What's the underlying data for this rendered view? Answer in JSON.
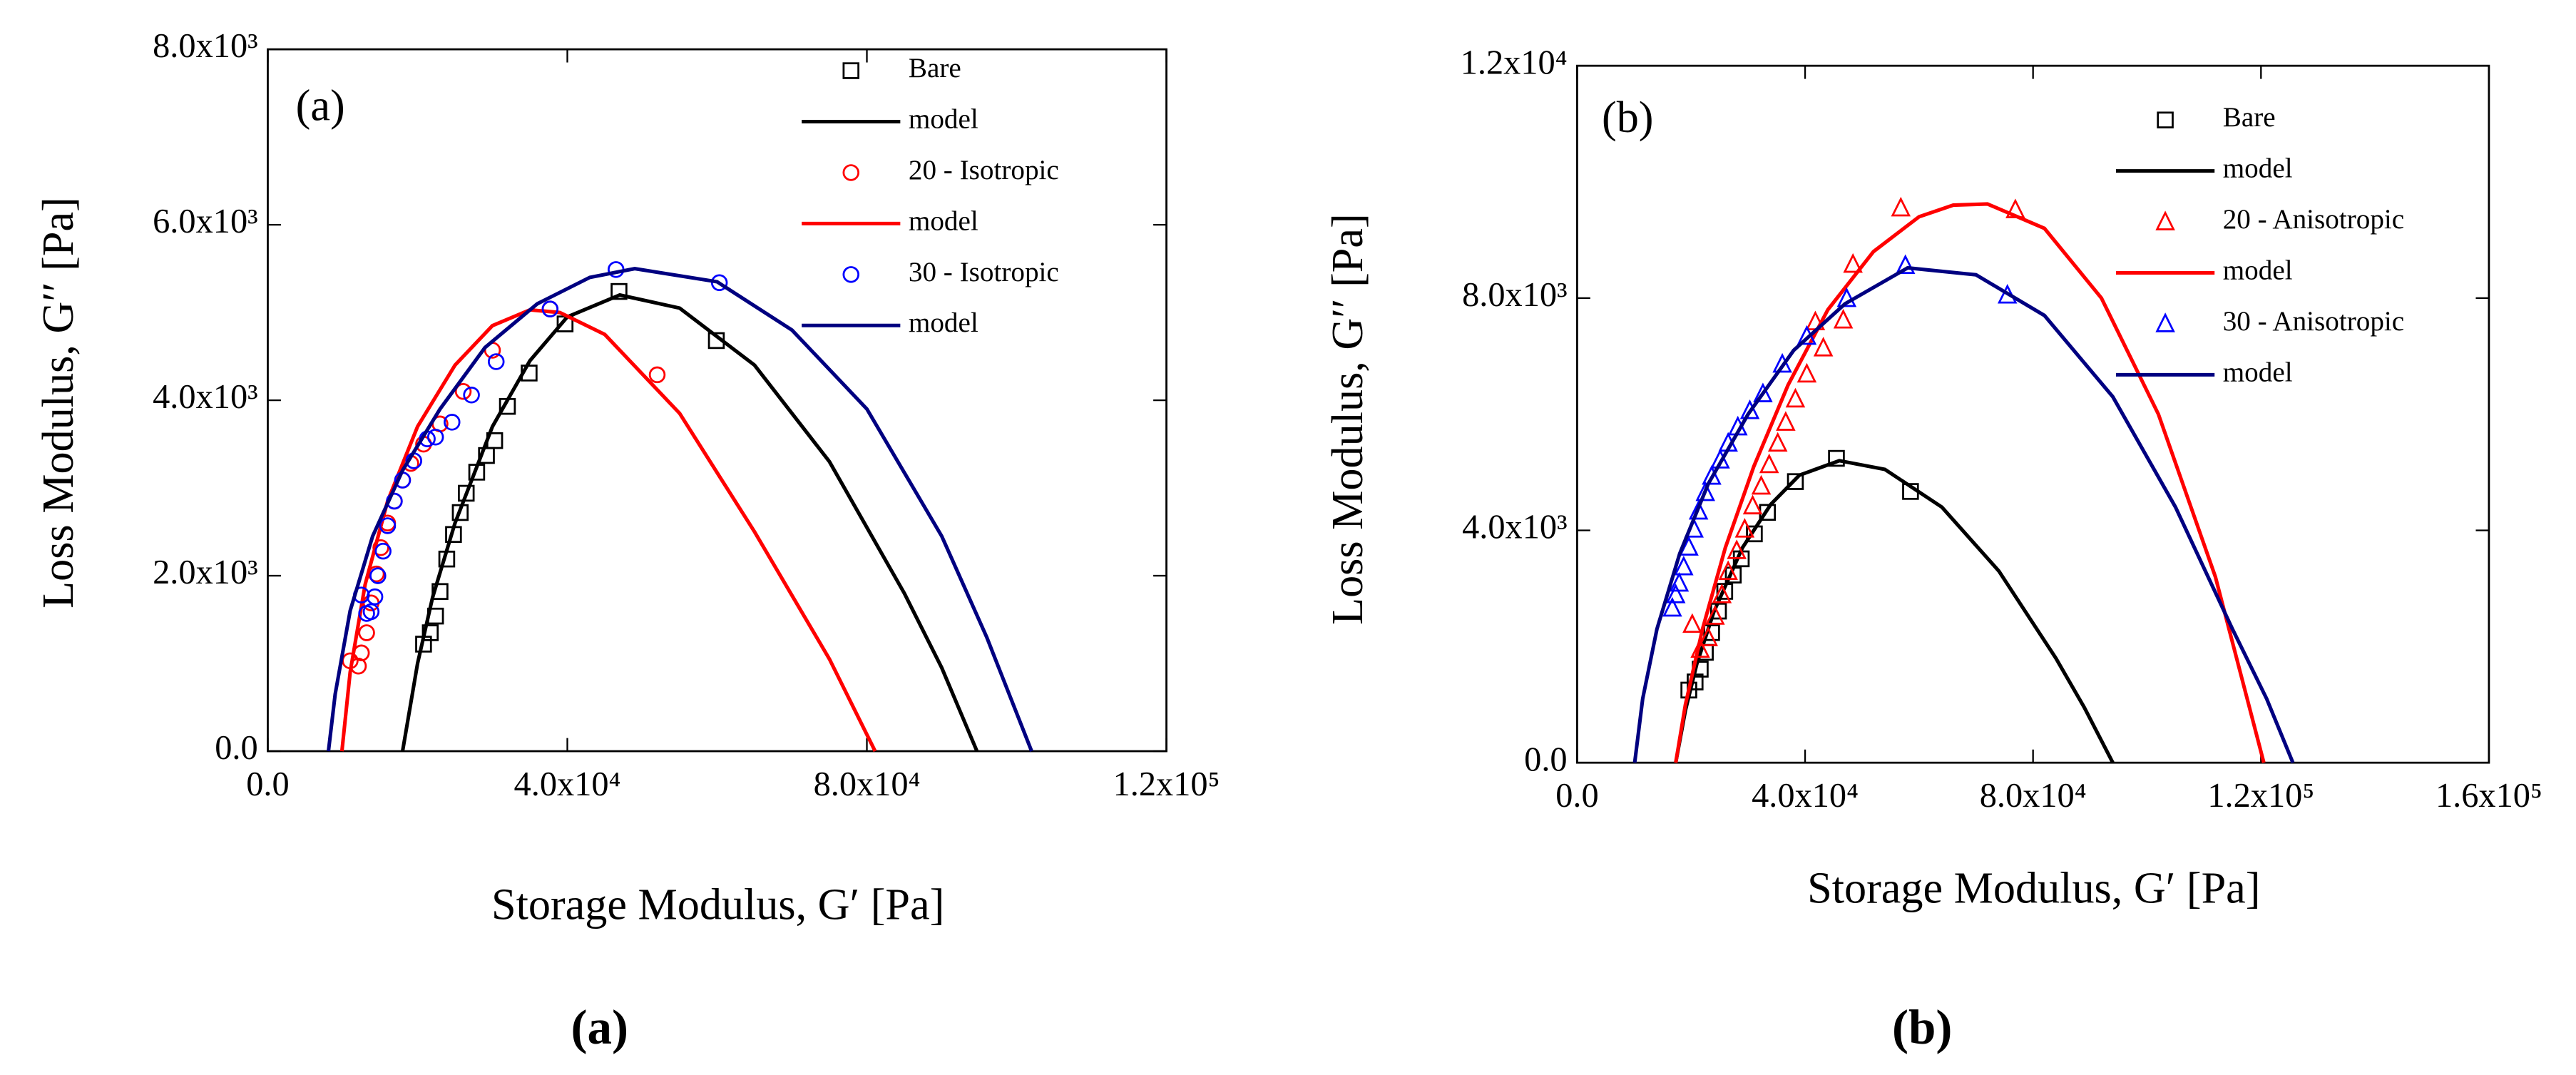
{
  "chart_data": [
    {
      "type": "scatter",
      "panel_label": "(a)",
      "caption": "(a)",
      "xlabel": "Storage Modulus, G′ [Pa]",
      "ylabel": "Loss Modulus, G′′ [Pa]",
      "xlim": [
        0,
        120000
      ],
      "ylim": [
        0,
        8000
      ],
      "xticks": [
        {
          "value": 0,
          "label": "0.0"
        },
        {
          "value": 40000,
          "label": "4.0x10⁴"
        },
        {
          "value": 80000,
          "label": "8.0x10⁴"
        },
        {
          "value": 120000,
          "label": "1.2x10⁵"
        }
      ],
      "yticks": [
        {
          "value": 0,
          "label": "0.0"
        },
        {
          "value": 2000,
          "label": "2.0x10³"
        },
        {
          "value": 4000,
          "label": "4.0x10³"
        },
        {
          "value": 6000,
          "label": "6.0x10³"
        },
        {
          "value": 8000,
          "label": "8.0x10³"
        }
      ],
      "series": [
        {
          "name": "Bare",
          "kind": "marker",
          "marker": "square",
          "color": "#000000",
          "x": [
            20800,
            21700,
            22400,
            23000,
            23900,
            24800,
            25700,
            26500,
            27900,
            29200,
            30300,
            32000,
            34900,
            39700,
            46900,
            59900
          ],
          "values": [
            1220,
            1350,
            1540,
            1820,
            2190,
            2470,
            2720,
            2940,
            3180,
            3370,
            3540,
            3930,
            4310,
            4870,
            5240,
            4680
          ]
        },
        {
          "name": "model",
          "kind": "line",
          "color": "#000000",
          "x": [
            18000,
            20000,
            22000,
            25000,
            30000,
            35000,
            40000,
            47000,
            55000,
            65000,
            75000,
            85000,
            90000,
            94700
          ],
          "values": [
            0,
            1000,
            1750,
            2600,
            3700,
            4450,
            4950,
            5200,
            5050,
            4400,
            3300,
            1800,
            950,
            0
          ]
        },
        {
          "name": "20 - Isotropic",
          "kind": "marker",
          "marker": "circle",
          "color": "#ff0000",
          "x": [
            11000,
            12100,
            12500,
            13200,
            13800,
            14500,
            15100,
            16000,
            16900,
            18000,
            19100,
            20800,
            23000,
            26100,
            30000,
            37700,
            52000
          ],
          "values": [
            1030,
            970,
            1120,
            1350,
            1690,
            2020,
            2320,
            2600,
            2850,
            3090,
            3280,
            3500,
            3730,
            4100,
            4570,
            5040,
            4290
          ]
        },
        {
          "name": "model",
          "kind": "line",
          "color": "#ff0000",
          "x": [
            9900,
            11000,
            13000,
            16000,
            20000,
            25000,
            30000,
            35000,
            39000,
            45000,
            55000,
            65000,
            75000,
            81100
          ],
          "values": [
            0,
            900,
            1900,
            2850,
            3700,
            4400,
            4850,
            5030,
            5000,
            4750,
            3850,
            2500,
            1050,
            0
          ]
        },
        {
          "name": "30 - Isotropic",
          "kind": "marker",
          "marker": "circle",
          "color": "#0000ff",
          "x": [
            12500,
            13200,
            13800,
            14300,
            14700,
            15400,
            16000,
            16900,
            18000,
            19500,
            21300,
            22400,
            24600,
            27200,
            30500,
            37700,
            46500,
            60300
          ],
          "values": [
            1780,
            1570,
            1590,
            1760,
            2000,
            2280,
            2570,
            2850,
            3090,
            3310,
            3560,
            3580,
            3750,
            4060,
            4440,
            5040,
            5490,
            5340
          ]
        },
        {
          "name": "model",
          "kind": "line",
          "color": "#000080",
          "x": [
            8100,
            9000,
            11000,
            14000,
            18000,
            23000,
            29000,
            36000,
            43000,
            49000,
            60000,
            70000,
            80000,
            90000,
            96000,
            102000
          ],
          "values": [
            0,
            650,
            1600,
            2450,
            3200,
            3900,
            4600,
            5100,
            5400,
            5500,
            5350,
            4800,
            3900,
            2450,
            1300,
            0
          ]
        }
      ]
    },
    {
      "type": "scatter",
      "panel_label": "(b)",
      "caption": "(b)",
      "xlabel": "Storage Modulus, G′ [Pa]",
      "ylabel": "Loss Modulus, G′′ [Pa]",
      "xlim": [
        0,
        160000
      ],
      "ylim": [
        0,
        12000
      ],
      "xticks": [
        {
          "value": 0,
          "label": "0.0"
        },
        {
          "value": 40000,
          "label": "4.0x10⁴"
        },
        {
          "value": 80000,
          "label": "8.0x10⁴"
        },
        {
          "value": 120000,
          "label": "1.2x10⁵"
        },
        {
          "value": 160000,
          "label": "1.6x10⁵"
        }
      ],
      "yticks": [
        {
          "value": 0,
          "label": "0.0"
        },
        {
          "value": 4000,
          "label": "4.0x10³"
        },
        {
          "value": 8000,
          "label": "8.0x10³"
        },
        {
          "value": 12000,
          "label": "1.2x10⁴"
        }
      ],
      "series": [
        {
          "name": "Bare",
          "kind": "marker",
          "marker": "square",
          "color": "#000000",
          "x": [
            19600,
            20700,
            21600,
            22500,
            23600,
            24800,
            25900,
            27400,
            28800,
            31100,
            33400,
            38300,
            45500,
            58500
          ],
          "values": [
            1250,
            1390,
            1610,
            1900,
            2240,
            2610,
            2950,
            3230,
            3510,
            3940,
            4310,
            4840,
            5240,
            4670
          ]
        },
        {
          "name": "model",
          "kind": "line",
          "color": "#000000",
          "x": [
            17300,
            19000,
            21000,
            24000,
            29000,
            34000,
            39000,
            46000,
            54000,
            64000,
            74000,
            84000,
            89000,
            94000
          ],
          "values": [
            0,
            900,
            1700,
            2600,
            3700,
            4450,
            4950,
            5200,
            5050,
            4400,
            3300,
            1800,
            950,
            0
          ]
        },
        {
          "name": "20 - Anisotropic",
          "kind": "marker",
          "marker": "triangle",
          "color": "#ff0000",
          "x": [
            20200,
            21600,
            23000,
            24200,
            25400,
            26500,
            28000,
            29400,
            30800,
            32300,
            33700,
            35200,
            36600,
            38300,
            40300,
            41800,
            43200,
            46700,
            48400,
            56800,
            76900
          ],
          "values": [
            2380,
            1950,
            2150,
            2520,
            2890,
            3290,
            3650,
            4020,
            4420,
            4760,
            5130,
            5500,
            5860,
            6260,
            6690,
            7590,
            7140,
            7620,
            8580,
            9550,
            9520
          ]
        },
        {
          "name": "model",
          "kind": "line",
          "color": "#ff0000",
          "x": [
            17300,
            19000,
            22000,
            26000,
            31000,
            37000,
            44000,
            52000,
            60000,
            66000,
            72000,
            82000,
            92000,
            102000,
            112000,
            120500
          ],
          "values": [
            0,
            1000,
            2300,
            3700,
            5100,
            6500,
            7800,
            8800,
            9400,
            9600,
            9620,
            9200,
            8000,
            6000,
            3200,
            0
          ]
        },
        {
          "name": "30 - Anisotropic",
          "kind": "marker",
          "marker": "triangle",
          "color": "#0000ff",
          "x": [
            16700,
            17300,
            17900,
            18700,
            19600,
            20500,
            21300,
            22500,
            23600,
            25100,
            26500,
            28200,
            30300,
            32600,
            36000,
            40300,
            47300,
            57600,
            75500
          ],
          "values": [
            2660,
            2890,
            3090,
            3370,
            3710,
            4020,
            4330,
            4650,
            4930,
            5210,
            5500,
            5780,
            6060,
            6350,
            6860,
            7340,
            7990,
            8560,
            8050
          ]
        },
        {
          "name": "model",
          "kind": "line",
          "color": "#000080",
          "x": [
            10100,
            11500,
            14000,
            18000,
            23000,
            30000,
            38000,
            47000,
            58000,
            70000,
            82000,
            94000,
            105000,
            115000,
            121000,
            125600
          ],
          "values": [
            0,
            1100,
            2300,
            3600,
            4800,
            6000,
            7100,
            7900,
            8520,
            8400,
            7700,
            6300,
            4400,
            2300,
            1100,
            0
          ]
        }
      ]
    }
  ]
}
